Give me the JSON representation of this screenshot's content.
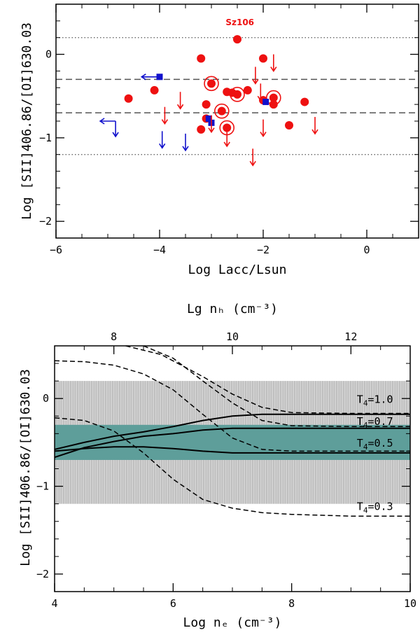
{
  "colors": {
    "ctts": "#ee1111",
    "wtts": "#1111cc",
    "band": "#5e9e9a",
    "hatch": "#a8a8a8"
  },
  "chart_data": [
    {
      "type": "scatter",
      "xlabel": "Log Lacc/Lsun",
      "ylabel": "Log [SII]406.86/[OI]630.03",
      "xlim": [
        -6,
        1
      ],
      "ylim": [
        -2.2,
        0.6
      ],
      "xticks": [
        -6,
        -4,
        -2,
        0
      ],
      "xtick_labels": [
        "−6",
        "−4",
        "−2",
        "0"
      ],
      "yticks": [
        -2,
        -1,
        0
      ],
      "ytick_labels": [
        "−2",
        "−1",
        "0"
      ],
      "hlines_dotted": [
        0.2,
        -1.2
      ],
      "hlines_dashed": [
        -0.3,
        -0.7
      ],
      "annotation": {
        "text": "Sz106",
        "x": -2.45,
        "y": 0.35
      },
      "series": [
        {
          "name": "detections",
          "marker": "circle",
          "x": [
            -2.5,
            -3.2,
            -2.0,
            -4.6,
            -4.1,
            -3.0,
            -3.1,
            -2.6,
            -2.7,
            -2.5,
            -2.3,
            -2.8,
            -1.8,
            -1.2,
            -3.2,
            -1.5,
            -2.7,
            -3.1,
            -2.0,
            -1.8
          ],
          "y": [
            0.18,
            -0.05,
            -0.05,
            -0.53,
            -0.43,
            -0.35,
            -0.6,
            -0.46,
            -0.45,
            -0.48,
            -0.43,
            -0.68,
            -0.52,
            -0.57,
            -0.9,
            -0.85,
            -0.88,
            -0.77,
            -0.55,
            -0.6
          ]
        },
        {
          "name": "detections-ringed",
          "marker": "ringed-circle",
          "x": [
            -3.0,
            -2.5,
            -1.8,
            -2.8,
            -2.7
          ],
          "y": [
            -0.35,
            -0.48,
            -0.52,
            -0.68,
            -0.88
          ]
        },
        {
          "name": "wtts",
          "marker": "square",
          "x": [
            -4.0,
            -1.95,
            -3.05,
            -3.0
          ],
          "y": [
            -0.27,
            -0.57,
            -0.77,
            -0.82
          ]
        },
        {
          "name": "upper-limits",
          "marker": "down-arrow",
          "x": [
            -1.8,
            -2.15,
            -2.05,
            -3.6,
            -3.9,
            -3.0,
            -2.0,
            -1.0,
            -2.7,
            -2.2
          ],
          "y": [
            0.0,
            -0.15,
            -0.35,
            -0.45,
            -0.63,
            -0.73,
            -0.78,
            -0.75,
            -0.9,
            -1.13
          ]
        },
        {
          "name": "wtts-limits",
          "marker": "down-arrow",
          "x": [
            -3.95,
            -3.5
          ],
          "y": [
            -0.92,
            -0.95
          ]
        },
        {
          "name": "wtts-two-sided-limits",
          "marker": "left-down-arrow",
          "x": [
            -4.05,
            -4.85
          ],
          "y": [
            -0.27,
            -0.8
          ]
        }
      ]
    },
    {
      "type": "line",
      "xlabel": "Log nₑ (cm⁻³)",
      "top_axis_label": "Lg nₕ (cm⁻³)",
      "ylabel": "Log [SII]406.86/[OI]630.03",
      "xlim": [
        4,
        10
      ],
      "ylim": [
        -2.2,
        0.6
      ],
      "xticks": [
        4,
        6,
        8,
        10
      ],
      "xtick_labels": [
        "4",
        "6",
        "8",
        "10"
      ],
      "top_ticks": [
        8,
        10,
        12
      ],
      "top_tick_labels": [
        "8",
        "10",
        "12"
      ],
      "top_tick_positions_log_ne": [
        5.0,
        7.0,
        9.0
      ],
      "yticks": [
        -2,
        -1,
        0
      ],
      "ytick_labels": [
        "−2",
        "−1",
        "0"
      ],
      "hatched_band": [
        -1.2,
        0.2
      ],
      "teal_band": [
        -0.7,
        -0.3
      ],
      "solid_series": [
        {
          "name": "T4=1.0",
          "x": [
            4.0,
            4.5,
            5.0,
            5.5,
            6.0,
            6.5,
            7.0,
            7.5,
            8.0,
            9.0,
            10.0
          ],
          "y": [
            -0.58,
            -0.5,
            -0.43,
            -0.38,
            -0.32,
            -0.25,
            -0.2,
            -0.18,
            -0.18,
            -0.18,
            -0.18
          ]
        },
        {
          "name": "T4=0.7",
          "x": [
            4.0,
            4.5,
            5.0,
            5.5,
            6.0,
            6.5,
            7.0,
            7.5,
            8.0,
            9.0,
            10.0
          ],
          "y": [
            -0.67,
            -0.56,
            -0.49,
            -0.43,
            -0.4,
            -0.36,
            -0.34,
            -0.34,
            -0.34,
            -0.34,
            -0.34
          ]
        },
        {
          "name": "T4=0.5",
          "x": [
            4.0,
            4.5,
            5.0,
            5.5,
            6.0,
            6.5,
            7.0,
            7.5,
            8.0,
            9.0,
            10.0
          ],
          "y": [
            -0.6,
            -0.57,
            -0.55,
            -0.55,
            -0.57,
            -0.6,
            -0.62,
            -0.62,
            -0.62,
            -0.62,
            -0.62
          ]
        }
      ],
      "dashed_series": [
        {
          "name": "dashed-1",
          "x": [
            5.2,
            5.8,
            6.5,
            7.0,
            7.5,
            8.0,
            9.0,
            10.0
          ],
          "y": [
            0.6,
            0.5,
            0.25,
            0.05,
            -0.1,
            -0.16,
            -0.17,
            -0.17
          ]
        },
        {
          "name": "dashed-2",
          "x": [
            5.5,
            6.0,
            6.5,
            7.0,
            7.5,
            8.0,
            9.0,
            10.0
          ],
          "y": [
            0.6,
            0.46,
            0.2,
            -0.05,
            -0.25,
            -0.31,
            -0.32,
            -0.32
          ]
        },
        {
          "name": "dashed-3",
          "x": [
            4.0,
            4.5,
            5.0,
            5.5,
            6.0,
            6.5,
            7.0,
            7.5,
            8.0,
            9.0,
            10.0
          ],
          "y": [
            0.43,
            0.42,
            0.38,
            0.28,
            0.1,
            -0.18,
            -0.45,
            -0.58,
            -0.6,
            -0.6,
            -0.6
          ]
        },
        {
          "name": "dashed-4",
          "x": [
            4.0,
            4.5,
            5.0,
            5.5,
            6.0,
            6.5,
            7.0,
            7.5,
            8.0,
            9.0,
            10.0
          ],
          "y": [
            -0.22,
            -0.25,
            -0.37,
            -0.62,
            -0.92,
            -1.15,
            -1.25,
            -1.3,
            -1.32,
            -1.34,
            -1.34
          ]
        }
      ],
      "curve_labels": [
        {
          "text": "T4=1.0",
          "sub": "4",
          "pre": "T",
          "post": "=1.0",
          "x": 9.1,
          "y": -0.05
        },
        {
          "text": "T4=0.7",
          "sub": "4",
          "pre": "T",
          "post": "=0.7",
          "x": 9.1,
          "y": -0.3
        },
        {
          "text": "T4=0.5",
          "sub": "4",
          "pre": "T",
          "post": "=0.5",
          "x": 9.1,
          "y": -0.55
        },
        {
          "text": "T4=0.3",
          "sub": "4",
          "pre": "T",
          "post": "=0.3",
          "x": 9.1,
          "y": -1.27
        }
      ]
    }
  ]
}
